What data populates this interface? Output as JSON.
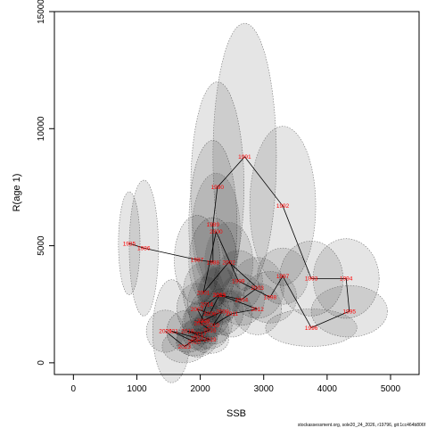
{
  "chart_data": {
    "type": "scatter",
    "title": "",
    "xlabel": "SSB",
    "ylabel": "R(age 1)",
    "xlim": [
      -300,
      5450
    ],
    "ylim": [
      -500,
      15000
    ],
    "xticks": [
      "0",
      "1000",
      "2000",
      "3000",
      "4000",
      "5000"
    ],
    "xtick_values": [
      0,
      1000,
      2000,
      3000,
      4000,
      5000
    ],
    "yticks": [
      "0",
      "5000",
      "10000",
      "15000"
    ],
    "ytick_values": [
      0,
      5000,
      10000,
      15000
    ],
    "grid": false,
    "footnote": "stockassessment.org, sole20_24_2026, r19796, git:1cc464b806f",
    "points": [
      {
        "year": "1985",
        "ssb": 880,
        "r": 5100
      },
      {
        "year": "1986",
        "ssb": 1110,
        "r": 4900
      },
      {
        "year": "1987",
        "ssb": 1950,
        "r": 4400
      },
      {
        "year": "1988",
        "ssb": 2200,
        "r": 4300
      },
      {
        "year": "1989",
        "ssb": 2200,
        "r": 5900
      },
      {
        "year": "1990",
        "ssb": 2270,
        "r": 7500
      },
      {
        "year": "1991",
        "ssb": 2700,
        "r": 8800
      },
      {
        "year": "1992",
        "ssb": 3300,
        "r": 6700
      },
      {
        "year": "1993",
        "ssb": 3750,
        "r": 3600
      },
      {
        "year": "1994",
        "ssb": 4300,
        "r": 3600
      },
      {
        "year": "1995",
        "ssb": 4350,
        "r": 2200
      },
      {
        "year": "1996",
        "ssb": 3750,
        "r": 1500
      },
      {
        "year": "1997",
        "ssb": 3300,
        "r": 3700
      },
      {
        "year": "1998",
        "ssb": 3100,
        "r": 2800
      },
      {
        "year": "1999",
        "ssb": 2600,
        "r": 3500
      },
      {
        "year": "2000",
        "ssb": 2250,
        "r": 5600
      },
      {
        "year": "2001",
        "ssb": 2050,
        "r": 3000
      },
      {
        "year": "2002",
        "ssb": 2450,
        "r": 4300
      },
      {
        "year": "2003",
        "ssb": 2900,
        "r": 3200
      },
      {
        "year": "2004",
        "ssb": 2650,
        "r": 2700
      },
      {
        "year": "2005",
        "ssb": 2300,
        "r": 2900
      },
      {
        "year": "2006",
        "ssb": 2150,
        "r": 2100
      },
      {
        "year": "2007",
        "ssb": 1950,
        "r": 2300
      },
      {
        "year": "2008",
        "ssb": 2050,
        "r": 1800
      },
      {
        "year": "2009",
        "ssb": 2350,
        "r": 2200
      },
      {
        "year": "2010",
        "ssb": 2200,
        "r": 1600
      },
      {
        "year": "2011",
        "ssb": 2500,
        "r": 2100
      },
      {
        "year": "2012",
        "ssb": 2900,
        "r": 2300
      },
      {
        "year": "2013",
        "ssb": 2300,
        "r": 2900
      },
      {
        "year": "2014",
        "ssb": 2100,
        "r": 2500
      },
      {
        "year": "2015",
        "ssb": 2000,
        "r": 1700
      },
      {
        "year": "2016",
        "ssb": 2150,
        "r": 1400
      },
      {
        "year": "2017",
        "ssb": 2000,
        "r": 1250
      },
      {
        "year": "2018",
        "ssb": 1800,
        "r": 1350
      },
      {
        "year": "2019",
        "ssb": 2150,
        "r": 1000
      },
      {
        "year": "2020",
        "ssb": 1900,
        "r": 900
      },
      {
        "year": "2021",
        "ssb": 1550,
        "r": 1350
      },
      {
        "year": "2022",
        "ssb": 1950,
        "r": 1050
      },
      {
        "year": "2023",
        "ssb": 1750,
        "r": 700
      },
      {
        "year": "2024",
        "ssb": 1450,
        "r": 1350
      }
    ],
    "ellipses": [
      {
        "year": "1985",
        "ssb_half_width": 170,
        "r_half_height": 2200
      },
      {
        "year": "1986",
        "ssb_half_width": 230,
        "r_half_height": 2900
      },
      {
        "year": "1987",
        "ssb_half_width": 360,
        "r_half_height": 1900
      },
      {
        "year": "1988",
        "ssb_half_width": 380,
        "r_half_height": 1900
      },
      {
        "year": "1989",
        "ssb_half_width": 380,
        "r_half_height": 3600
      },
      {
        "year": "1990",
        "ssb_half_width": 420,
        "r_half_height": 4500
      },
      {
        "year": "1991",
        "ssb_half_width": 500,
        "r_half_height": 5700
      },
      {
        "year": "1992",
        "ssb_half_width": 520,
        "r_half_height": 3400
      },
      {
        "year": "1993",
        "ssb_half_width": 500,
        "r_half_height": 1600
      },
      {
        "year": "1994",
        "ssb_half_width": 520,
        "r_half_height": 1700
      },
      {
        "year": "1995",
        "ssb_half_width": 600,
        "r_half_height": 1100
      },
      {
        "year": "1996",
        "ssb_half_width": 720,
        "r_half_height": 800
      },
      {
        "year": "1997",
        "ssb_half_width": 400,
        "r_half_height": 1200
      },
      {
        "year": "1998",
        "ssb_half_width": 420,
        "r_half_height": 1100
      },
      {
        "year": "1999",
        "ssb_half_width": 380,
        "r_half_height": 1300
      },
      {
        "year": "2000",
        "ssb_half_width": 380,
        "r_half_height": 2500
      },
      {
        "year": "2001",
        "ssb_half_width": 320,
        "r_half_height": 1300
      },
      {
        "year": "2002",
        "ssb_half_width": 380,
        "r_half_height": 1700
      },
      {
        "year": "2003",
        "ssb_half_width": 420,
        "r_half_height": 1300
      },
      {
        "year": "2004",
        "ssb_half_width": 360,
        "r_half_height": 1100
      },
      {
        "year": "2005",
        "ssb_half_width": 340,
        "r_half_height": 1200
      },
      {
        "year": "2006",
        "ssb_half_width": 320,
        "r_half_height": 1000
      },
      {
        "year": "2007",
        "ssb_half_width": 320,
        "r_half_height": 1100
      },
      {
        "year": "2008",
        "ssb_half_width": 300,
        "r_half_height": 900
      },
      {
        "year": "2009",
        "ssb_half_width": 330,
        "r_half_height": 1000
      },
      {
        "year": "2010",
        "ssb_half_width": 300,
        "r_half_height": 800
      },
      {
        "year": "2011",
        "ssb_half_width": 320,
        "r_half_height": 1000
      },
      {
        "year": "2012",
        "ssb_half_width": 380,
        "r_half_height": 1100
      },
      {
        "year": "2013",
        "ssb_half_width": 320,
        "r_half_height": 1300
      },
      {
        "year": "2014",
        "ssb_half_width": 300,
        "r_half_height": 1200
      },
      {
        "year": "2015",
        "ssb_half_width": 280,
        "r_half_height": 900
      },
      {
        "year": "2016",
        "ssb_half_width": 300,
        "r_half_height": 800
      },
      {
        "year": "2017",
        "ssb_half_width": 280,
        "r_half_height": 700
      },
      {
        "year": "2018",
        "ssb_half_width": 330,
        "r_half_height": 900
      },
      {
        "year": "2019",
        "ssb_half_width": 300,
        "r_half_height": 600
      },
      {
        "year": "2020",
        "ssb_half_width": 280,
        "r_half_height": 600
      },
      {
        "year": "2021",
        "ssb_half_width": 300,
        "r_half_height": 2200
      },
      {
        "year": "2022",
        "ssb_half_width": 320,
        "r_half_height": 800
      },
      {
        "year": "2023",
        "ssb_half_width": 350,
        "r_half_height": 700
      },
      {
        "year": "2024",
        "ssb_half_width": 300,
        "r_half_height": 900
      }
    ],
    "colors": {
      "ellipse_fill": "#000000",
      "ellipse_stroke": "#777777",
      "line": "#000000",
      "label": "#ff0000",
      "axis": "#000000"
    }
  }
}
